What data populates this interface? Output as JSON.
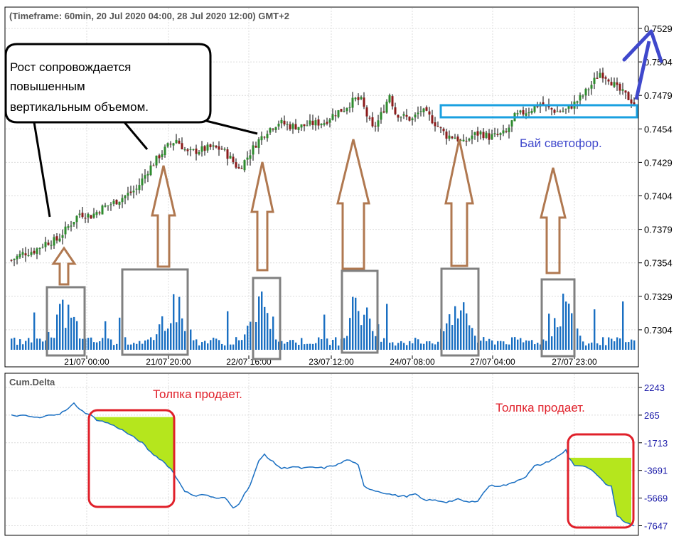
{
  "header": {
    "timeframe": "(Timeframe: 60min, 20 Jul 2020 04:00, 28 Jul 2020 12:00) GMT+2"
  },
  "annotations": {
    "callout": [
      "Рост сопровождается",
      "повышенным",
      "вертикальным объемом."
    ],
    "buy_signal": "Бай светофор.",
    "crowd_sells_1": "Толпка продает.",
    "crowd_sells_2": "Толпка продает."
  },
  "colors": {
    "bull_candle": "#2e8b2e",
    "bear_candle": "#8b1a1a",
    "volume": "#1a6fc2",
    "cum_delta_line": "#1a6fc2",
    "fill_area": "#b5e61d",
    "highlight_box_red": "#e0202a",
    "highlight_box_gray": "#808080",
    "arrow_brown": "#b07850",
    "arrow_blue": "#3f48cc",
    "level_box": "#1aa0e0",
    "axis_label_blue": "#1a1aa8",
    "text_red": "#e0202a",
    "text_blue": "#3f48cc"
  },
  "chart_data": [
    {
      "type": "candlestick",
      "title": "(Timeframe: 60min, 20 Jul 2020 04:00, 28 Jul 2020 12:00) GMT+2",
      "y_ticks": [
        "0.7529",
        "0.7504",
        "0.7479",
        "0.7454",
        "0.7429",
        "0.7404",
        "0.7379",
        "0.7354",
        "0.7329",
        "0.7304"
      ],
      "ylim": [
        0.7289,
        0.7534
      ],
      "x_ticks": [
        "21/07 00:00",
        "21/07 20:00",
        "22/07 16:00",
        "23/07 12:00",
        "24/07 08:00",
        "27/07 04:00",
        "27/07 23:00"
      ],
      "grid": true,
      "close_path": [
        [
          0,
          0.7356
        ],
        [
          4,
          0.7361
        ],
        [
          8,
          0.7363
        ],
        [
          12,
          0.7369
        ],
        [
          16,
          0.7371
        ],
        [
          20,
          0.7381
        ],
        [
          24,
          0.7391
        ],
        [
          28,
          0.7389
        ],
        [
          32,
          0.7395
        ],
        [
          36,
          0.7399
        ],
        [
          40,
          0.7404
        ],
        [
          44,
          0.7409
        ],
        [
          48,
          0.7423
        ],
        [
          52,
          0.7434
        ],
        [
          55,
          0.7441
        ],
        [
          58,
          0.7446
        ],
        [
          62,
          0.7436
        ],
        [
          66,
          0.7438
        ],
        [
          70,
          0.744
        ],
        [
          74,
          0.7439
        ],
        [
          77,
          0.7432
        ],
        [
          80,
          0.7424
        ],
        [
          83,
          0.7433
        ],
        [
          86,
          0.7443
        ],
        [
          90,
          0.7453
        ],
        [
          94,
          0.7459
        ],
        [
          98,
          0.7456
        ],
        [
          102,
          0.7456
        ],
        [
          106,
          0.7458
        ],
        [
          110,
          0.7459
        ],
        [
          114,
          0.7466
        ],
        [
          117,
          0.7469
        ],
        [
          119,
          0.7473
        ],
        [
          121,
          0.7476
        ],
        [
          123,
          0.7475
        ],
        [
          125,
          0.7464
        ],
        [
          127,
          0.7454
        ],
        [
          129,
          0.746
        ],
        [
          131,
          0.7469
        ],
        [
          133,
          0.748
        ],
        [
          135,
          0.7466
        ],
        [
          138,
          0.7463
        ],
        [
          141,
          0.7461
        ],
        [
          144,
          0.7468
        ],
        [
          147,
          0.7463
        ],
        [
          150,
          0.7456
        ],
        [
          153,
          0.7449
        ],
        [
          156,
          0.7448
        ],
        [
          159,
          0.7443
        ],
        [
          162,
          0.7449
        ],
        [
          165,
          0.7451
        ],
        [
          168,
          0.7448
        ],
        [
          171,
          0.7449
        ],
        [
          174,
          0.7451
        ],
        [
          177,
          0.7463
        ],
        [
          180,
          0.7466
        ],
        [
          183,
          0.7469
        ],
        [
          186,
          0.7473
        ],
        [
          189,
          0.7469
        ],
        [
          192,
          0.7467
        ],
        [
          195,
          0.7468
        ],
        [
          198,
          0.7473
        ],
        [
          201,
          0.7479
        ],
        [
          204,
          0.7487
        ],
        [
          207,
          0.7496
        ],
        [
          210,
          0.7492
        ],
        [
          213,
          0.7484
        ],
        [
          216,
          0.7479
        ],
        [
          219,
          0.7473
        ]
      ],
      "volume_bursts": [
        {
          "center": 19,
          "height": 0.85
        },
        {
          "center": 57,
          "height": 1.0
        },
        {
          "center": 88,
          "height": 0.92
        },
        {
          "center": 122,
          "height": 1.0
        },
        {
          "center": 157,
          "height": 1.0
        },
        {
          "center": 194,
          "height": 0.88
        }
      ],
      "buy_level": 0.7463
    },
    {
      "type": "line",
      "title": "Cum.Delta",
      "y_ticks": [
        "2243",
        "265",
        "-1713",
        "-3691",
        "-5669",
        "-7647"
      ],
      "ylim": [
        -8000,
        2600
      ],
      "points": [
        [
          0,
          240
        ],
        [
          5,
          210
        ],
        [
          10,
          60
        ],
        [
          14,
          300
        ],
        [
          17,
          360
        ],
        [
          20,
          720
        ],
        [
          22,
          1100
        ],
        [
          25,
          540
        ],
        [
          28,
          240
        ],
        [
          30,
          -60
        ],
        [
          34,
          -310
        ],
        [
          38,
          -680
        ],
        [
          42,
          -1190
        ],
        [
          46,
          -1720
        ],
        [
          49,
          -2400
        ],
        [
          53,
          -2980
        ],
        [
          56,
          -3560
        ],
        [
          58,
          -4200
        ],
        [
          61,
          -5150
        ],
        [
          64,
          -5530
        ],
        [
          67,
          -5380
        ],
        [
          70,
          -5560
        ],
        [
          73,
          -5710
        ],
        [
          75,
          -5620
        ],
        [
          78,
          -6380
        ],
        [
          80,
          -6050
        ],
        [
          84,
          -4700
        ],
        [
          87,
          -3050
        ],
        [
          89,
          -2530
        ],
        [
          91,
          -2930
        ],
        [
          95,
          -3550
        ],
        [
          99,
          -3420
        ],
        [
          102,
          -3530
        ],
        [
          106,
          -3480
        ],
        [
          110,
          -3510
        ],
        [
          115,
          -3250
        ],
        [
          118,
          -2930
        ],
        [
          120,
          -3050
        ],
        [
          122,
          -3360
        ],
        [
          124,
          -4830
        ],
        [
          127,
          -5080
        ],
        [
          130,
          -5240
        ],
        [
          133,
          -5390
        ],
        [
          136,
          -5510
        ],
        [
          139,
          -5540
        ],
        [
          142,
          -5390
        ],
        [
          145,
          -5800
        ],
        [
          149,
          -5830
        ],
        [
          153,
          -5950
        ],
        [
          157,
          -5770
        ],
        [
          161,
          -5980
        ],
        [
          164,
          -5840
        ],
        [
          168,
          -4790
        ],
        [
          172,
          -4790
        ],
        [
          175,
          -4690
        ],
        [
          178,
          -4390
        ],
        [
          181,
          -4120
        ],
        [
          184,
          -3380
        ],
        [
          187,
          -3230
        ],
        [
          190,
          -2930
        ],
        [
          193,
          -2590
        ],
        [
          195,
          -2230
        ],
        [
          196,
          -2750
        ],
        [
          198,
          -3320
        ],
        [
          200,
          -3360
        ],
        [
          203,
          -3530
        ],
        [
          206,
          -4050
        ],
        [
          209,
          -4700
        ],
        [
          211,
          -4800
        ],
        [
          213,
          -6920
        ],
        [
          216,
          -7400
        ],
        [
          219,
          -7600
        ]
      ]
    }
  ]
}
